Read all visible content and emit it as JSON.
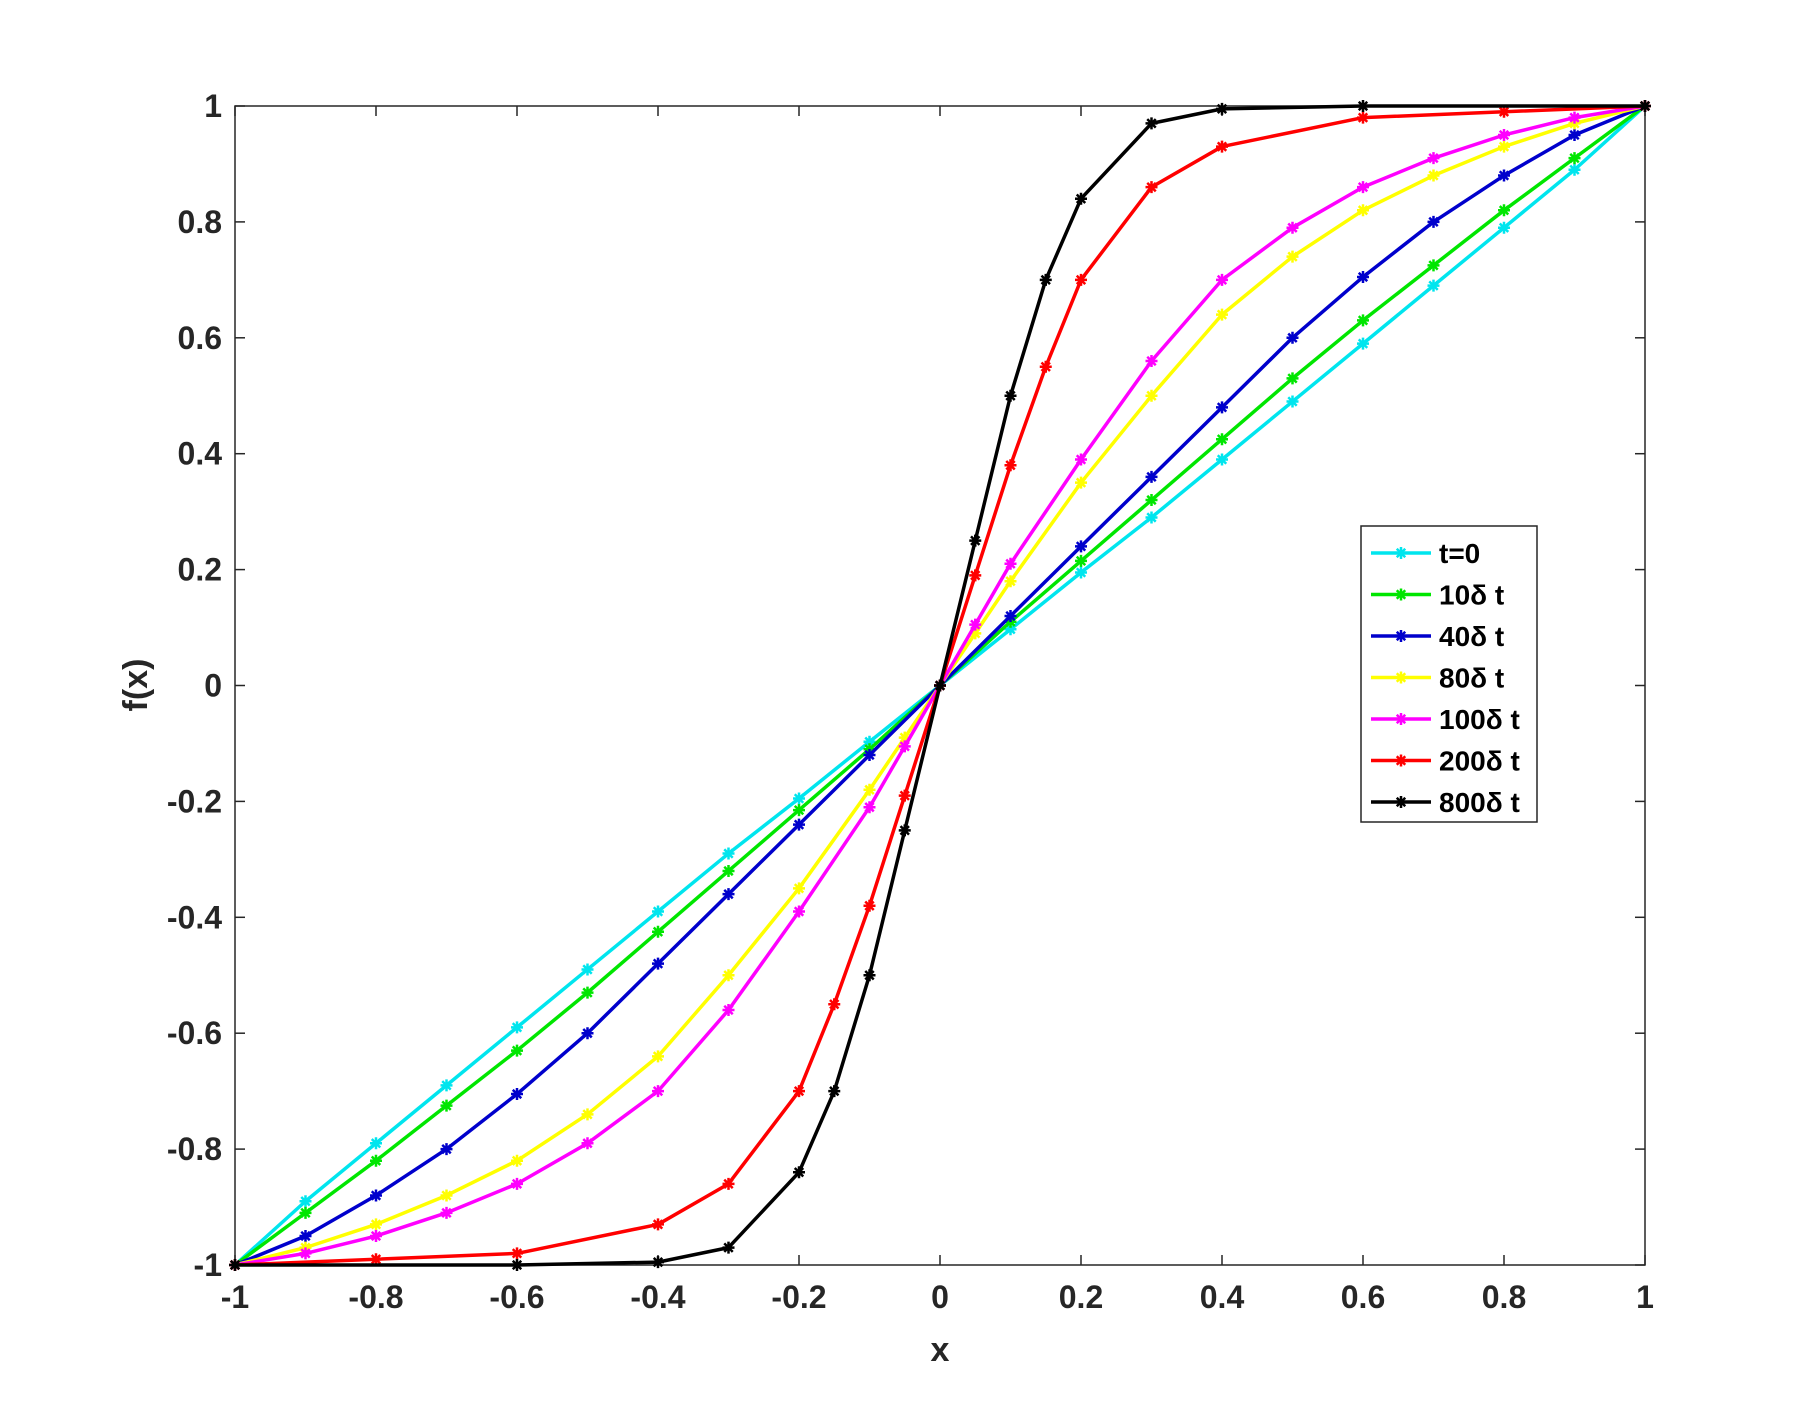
{
  "chart_data": {
    "type": "line",
    "title": "",
    "xlabel": "x",
    "ylabel": "f(x)",
    "xlim": [
      -1,
      1
    ],
    "ylim": [
      -1,
      1
    ],
    "xticks": [
      "-1",
      "-0.8",
      "-0.6",
      "-0.4",
      "-0.2",
      "0",
      "0.2",
      "0.4",
      "0.6",
      "0.8",
      "1"
    ],
    "yticks": [
      "1",
      "0.8",
      "0.6",
      "0.4",
      "0.2",
      "0",
      "-0.2",
      "-0.4",
      "-0.6",
      "-0.8",
      "-1"
    ],
    "grid": false,
    "legend_position": "right-center",
    "marker": "asterisk",
    "series": [
      {
        "name": "t=0",
        "color": "#00e5ee",
        "x": [
          -1,
          -0.9,
          -0.8,
          -0.7,
          -0.6,
          -0.5,
          -0.4,
          -0.3,
          -0.2,
          -0.1,
          0,
          0.1,
          0.2,
          0.3,
          0.4,
          0.5,
          0.6,
          0.7,
          0.8,
          0.9,
          1
        ],
        "y": [
          -1,
          -0.89,
          -0.79,
          -0.69,
          -0.59,
          -0.49,
          -0.39,
          -0.29,
          -0.195,
          -0.097,
          0,
          0.097,
          0.195,
          0.29,
          0.39,
          0.49,
          0.59,
          0.69,
          0.79,
          0.89,
          1
        ]
      },
      {
        "name": "10δ t",
        "color": "#00e600",
        "x": [
          -1,
          -0.9,
          -0.8,
          -0.7,
          -0.6,
          -0.5,
          -0.4,
          -0.3,
          -0.2,
          -0.1,
          0,
          0.1,
          0.2,
          0.3,
          0.4,
          0.5,
          0.6,
          0.7,
          0.8,
          0.9,
          1
        ],
        "y": [
          -1,
          -0.91,
          -0.82,
          -0.725,
          -0.63,
          -0.53,
          -0.425,
          -0.32,
          -0.215,
          -0.11,
          0,
          0.11,
          0.215,
          0.32,
          0.425,
          0.53,
          0.63,
          0.725,
          0.82,
          0.91,
          1
        ]
      },
      {
        "name": "40δ t",
        "color": "#0000cc",
        "x": [
          -1,
          -0.9,
          -0.8,
          -0.7,
          -0.6,
          -0.5,
          -0.4,
          -0.3,
          -0.2,
          -0.1,
          0,
          0.1,
          0.2,
          0.3,
          0.4,
          0.5,
          0.6,
          0.7,
          0.8,
          0.9,
          1
        ],
        "y": [
          -1,
          -0.95,
          -0.88,
          -0.8,
          -0.705,
          -0.6,
          -0.48,
          -0.36,
          -0.24,
          -0.12,
          0,
          0.12,
          0.24,
          0.36,
          0.48,
          0.6,
          0.705,
          0.8,
          0.88,
          0.95,
          1
        ]
      },
      {
        "name": "80δ t",
        "color": "#ffff00",
        "x": [
          -1,
          -0.9,
          -0.8,
          -0.7,
          -0.6,
          -0.5,
          -0.4,
          -0.3,
          -0.2,
          -0.1,
          -0.05,
          0,
          0.05,
          0.1,
          0.2,
          0.3,
          0.4,
          0.5,
          0.6,
          0.7,
          0.8,
          0.9,
          1
        ],
        "y": [
          -1,
          -0.97,
          -0.93,
          -0.88,
          -0.82,
          -0.74,
          -0.64,
          -0.5,
          -0.35,
          -0.18,
          -0.09,
          0,
          0.09,
          0.18,
          0.35,
          0.5,
          0.64,
          0.74,
          0.82,
          0.88,
          0.93,
          0.97,
          1
        ]
      },
      {
        "name": "100δ t",
        "color": "#ff00ff",
        "x": [
          -1,
          -0.9,
          -0.8,
          -0.7,
          -0.6,
          -0.5,
          -0.4,
          -0.3,
          -0.2,
          -0.1,
          -0.05,
          0,
          0.05,
          0.1,
          0.2,
          0.3,
          0.4,
          0.5,
          0.6,
          0.7,
          0.8,
          0.9,
          1
        ],
        "y": [
          -1,
          -0.98,
          -0.95,
          -0.91,
          -0.86,
          -0.79,
          -0.7,
          -0.56,
          -0.39,
          -0.21,
          -0.105,
          0,
          0.105,
          0.21,
          0.39,
          0.56,
          0.7,
          0.79,
          0.86,
          0.91,
          0.95,
          0.98,
          1
        ]
      },
      {
        "name": "200δ t",
        "color": "#ff0000",
        "x": [
          -1,
          -0.8,
          -0.6,
          -0.4,
          -0.3,
          -0.2,
          -0.15,
          -0.1,
          -0.05,
          0,
          0.05,
          0.1,
          0.15,
          0.2,
          0.3,
          0.4,
          0.6,
          0.8,
          1
        ],
        "y": [
          -1,
          -0.99,
          -0.98,
          -0.93,
          -0.86,
          -0.7,
          -0.55,
          -0.38,
          -0.19,
          0,
          0.19,
          0.38,
          0.55,
          0.7,
          0.86,
          0.93,
          0.98,
          0.99,
          1
        ]
      },
      {
        "name": "800δ t",
        "color": "#000000",
        "x": [
          -1,
          -0.6,
          -0.4,
          -0.3,
          -0.2,
          -0.15,
          -0.1,
          -0.05,
          0,
          0.05,
          0.1,
          0.15,
          0.2,
          0.3,
          0.4,
          0.6,
          1
        ],
        "y": [
          -1,
          -1,
          -0.995,
          -0.97,
          -0.84,
          -0.7,
          -0.5,
          -0.25,
          0,
          0.25,
          0.5,
          0.7,
          0.84,
          0.97,
          0.995,
          1,
          1
        ]
      }
    ]
  }
}
